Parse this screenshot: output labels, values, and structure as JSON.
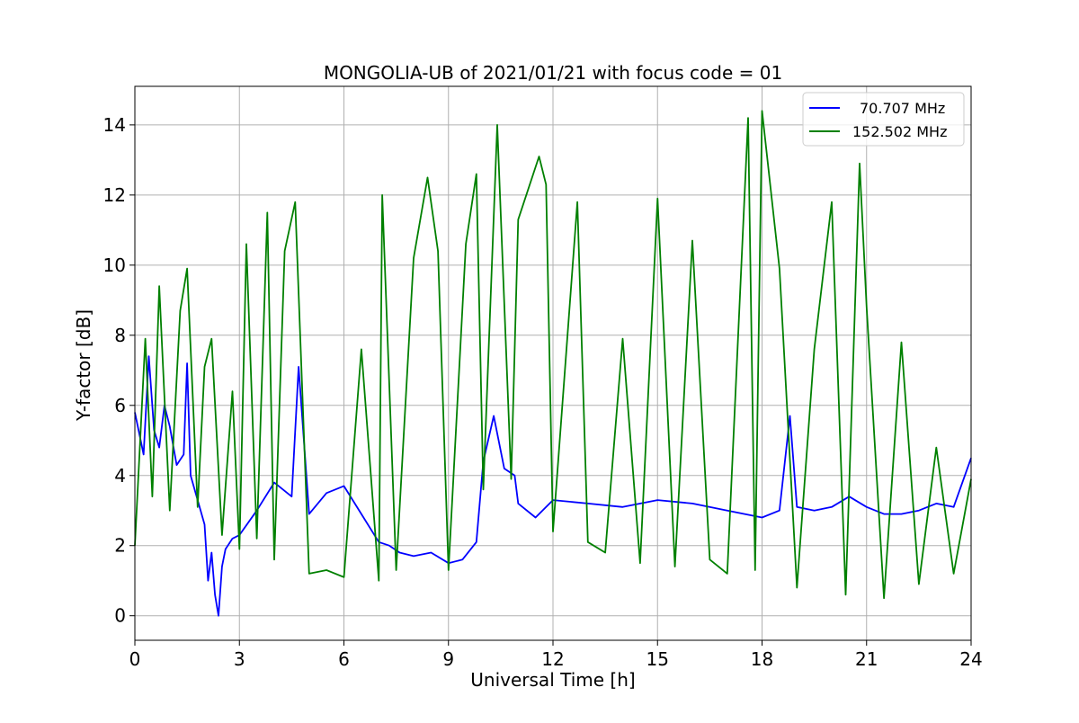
{
  "chart_data": {
    "type": "line",
    "title": "MONGOLIA-UB of 2021/01/21 with focus code = 01",
    "xlabel": "Universal Time [h]",
    "ylabel": "Y-factor [dB]",
    "xlim": [
      0,
      24
    ],
    "ylim": [
      -0.7,
      15.1
    ],
    "xticks": [
      0,
      3,
      6,
      9,
      12,
      15,
      18,
      21,
      24
    ],
    "yticks": [
      0,
      2,
      4,
      6,
      8,
      10,
      12,
      14
    ],
    "grid": true,
    "legend_position": "top-right",
    "series": [
      {
        "name": "70.707 MHz",
        "color": "#0000ff",
        "x": [
          0,
          0.25,
          0.4,
          0.55,
          0.7,
          0.85,
          1.0,
          1.2,
          1.4,
          1.5,
          1.6,
          1.8,
          2.0,
          2.1,
          2.2,
          2.3,
          2.4,
          2.5,
          2.6,
          2.8,
          3.0,
          3.5,
          4.0,
          4.5,
          4.7,
          5.0,
          5.5,
          6.0,
          6.5,
          7.0,
          7.3,
          7.6,
          8.0,
          8.5,
          9.0,
          9.4,
          9.8,
          10.0,
          10.3,
          10.6,
          10.9,
          11.0,
          11.5,
          12.0,
          13.0,
          14.0,
          15.0,
          16.0,
          17.0,
          17.5,
          18.0,
          18.5,
          18.8,
          19.0,
          19.5,
          20.0,
          20.5,
          21.0,
          21.5,
          22.0,
          22.5,
          23.0,
          23.5,
          24.0
        ],
        "y": [
          5.8,
          4.6,
          7.4,
          5.3,
          4.8,
          6.0,
          5.4,
          4.3,
          4.6,
          7.2,
          4.0,
          3.3,
          2.6,
          1.0,
          1.8,
          0.6,
          0.0,
          1.4,
          1.9,
          2.2,
          2.3,
          3.0,
          3.8,
          3.4,
          7.1,
          2.9,
          3.5,
          3.7,
          2.9,
          2.1,
          2.0,
          1.8,
          1.7,
          1.8,
          1.5,
          1.6,
          2.1,
          4.4,
          5.7,
          4.2,
          4.0,
          3.2,
          2.8,
          3.3,
          3.2,
          3.1,
          3.3,
          3.2,
          3.0,
          2.9,
          2.8,
          3.0,
          5.7,
          3.1,
          3.0,
          3.1,
          3.4,
          3.1,
          2.9,
          2.9,
          3.0,
          3.2,
          3.1,
          4.5
        ]
      },
      {
        "name": "152.502 MHz",
        "color": "#008000",
        "x": [
          0,
          0.3,
          0.5,
          0.7,
          1.0,
          1.3,
          1.5,
          1.8,
          2.0,
          2.2,
          2.5,
          2.8,
          3.0,
          3.2,
          3.5,
          3.8,
          4.0,
          4.3,
          4.6,
          5.0,
          5.5,
          6.0,
          6.5,
          7.0,
          7.1,
          7.5,
          8.0,
          8.4,
          8.7,
          9.0,
          9.5,
          9.8,
          10.0,
          10.4,
          10.8,
          11.0,
          11.6,
          11.8,
          12.0,
          12.7,
          13.0,
          13.5,
          14.0,
          14.5,
          15.0,
          15.5,
          16.0,
          16.5,
          17.0,
          17.6,
          17.8,
          18.0,
          18.5,
          19.0,
          19.5,
          20.0,
          20.4,
          20.8,
          21.0,
          21.5,
          22.0,
          22.5,
          23.0,
          23.5,
          24.0
        ],
        "y": [
          2.0,
          7.9,
          3.4,
          9.4,
          3.0,
          8.7,
          9.9,
          3.1,
          7.1,
          7.9,
          2.3,
          6.4,
          1.9,
          10.6,
          2.2,
          11.5,
          1.6,
          10.4,
          11.8,
          1.2,
          1.3,
          1.1,
          7.6,
          1.0,
          12.0,
          1.3,
          10.2,
          12.5,
          10.4,
          1.3,
          10.6,
          12.6,
          3.6,
          14.0,
          3.9,
          11.3,
          13.1,
          12.3,
          2.4,
          11.8,
          2.1,
          1.8,
          7.9,
          1.5,
          11.9,
          1.4,
          10.7,
          1.6,
          1.2,
          14.2,
          1.3,
          14.4,
          9.9,
          0.8,
          7.6,
          11.8,
          0.6,
          12.9,
          8.8,
          0.5,
          7.8,
          0.9,
          4.8,
          1.2,
          3.9
        ]
      }
    ]
  }
}
